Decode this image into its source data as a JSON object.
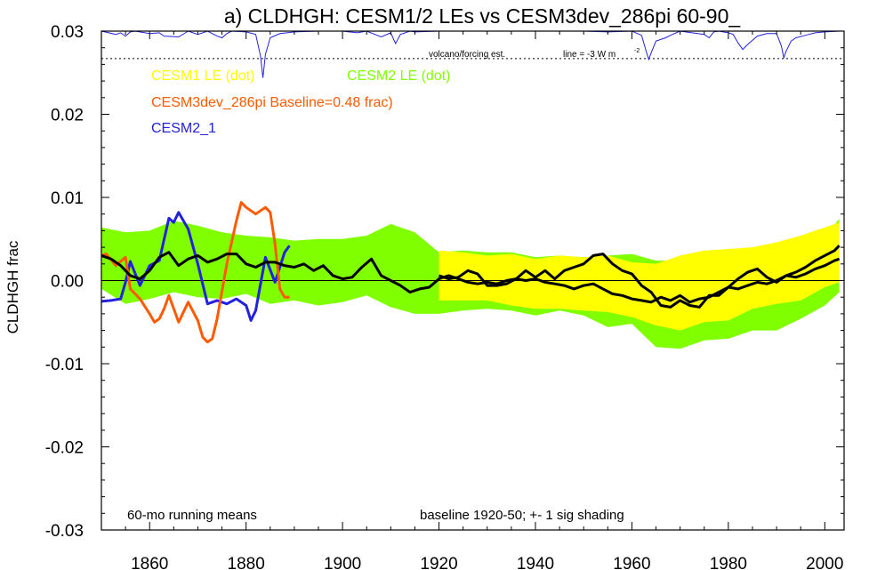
{
  "chart_data": {
    "type": "line",
    "title": "a) CLDHGH: CESM1/2 LEs vs CESM3dev_286pi 60-90_",
    "ylabel": "CLDHGH frac",
    "xlim": [
      1850,
      2004
    ],
    "ylim": [
      -0.03,
      0.03
    ],
    "xticks": [
      1860,
      1880,
      1900,
      1920,
      1940,
      1960,
      1980,
      2000
    ],
    "yticks": [
      {
        "v": 0.03,
        "label": "0.03"
      },
      {
        "v": 0.02,
        "label": "0.02"
      },
      {
        "v": 0.01,
        "label": "0.01"
      },
      {
        "v": 0.0,
        "label": "0.00"
      },
      {
        "v": -0.01,
        "label": "-0.01"
      },
      {
        "v": -0.02,
        "label": "-0.02"
      },
      {
        "v": -0.03,
        "label": "-0.03"
      }
    ],
    "legend": {
      "cesm1": {
        "text": "CESM1 LE (dot)",
        "color": "#ffff00"
      },
      "cesm2": {
        "text": "CESM2 LE (dot)",
        "color": "#80ff00"
      },
      "cesm3": {
        "text": "CESM3dev_286pi Baseline=0.48 frac)",
        "color": "#ff5a00"
      },
      "cesm2_1": {
        "text": "CESM2_1",
        "color": "#2222dd"
      }
    },
    "annotations": {
      "volcano": "volcano/forcing est.",
      "line_label": "line = -3 W m",
      "line_sup": "-2",
      "running": "60-mo running means",
      "baseline": "baseline 1920-50; +- 1 sig shading"
    },
    "volcano_ref_y": 0.0267,
    "colors": {
      "cesm1_band": "#ffff00",
      "cesm2_band": "#80ff00",
      "cesm3": "#ff5a00",
      "cesm2_1": "#2222dd",
      "ens_mean": "#000000",
      "volcano": "#2222dd"
    },
    "cesm2_band": {
      "x": [
        1850,
        1855,
        1860,
        1865,
        1870,
        1875,
        1880,
        1885,
        1890,
        1895,
        1900,
        1905,
        1910,
        1915,
        1920,
        1925,
        1930,
        1935,
        1940,
        1945,
        1950,
        1955,
        1960,
        1965,
        1970,
        1975,
        1980,
        1985,
        1990,
        1995,
        2000,
        2003
      ],
      "upper": [
        0.0064,
        0.0058,
        0.006,
        0.0072,
        0.0066,
        0.0058,
        0.0054,
        0.0052,
        0.0048,
        0.005,
        0.005,
        0.0054,
        0.0068,
        0.0058,
        0.0034,
        0.0036,
        0.0034,
        0.0034,
        0.0028,
        0.003,
        0.0028,
        0.003,
        0.0032,
        0.0024,
        0.0024,
        0.0028,
        0.0032,
        0.0034,
        0.004,
        0.0046,
        0.0054,
        0.0074
      ],
      "lower": [
        -0.001,
        -0.0028,
        -0.0022,
        -0.0014,
        -0.002,
        -0.0022,
        -0.0016,
        -0.0028,
        -0.0024,
        -0.003,
        -0.0026,
        -0.0018,
        -0.0032,
        -0.004,
        -0.004,
        -0.0036,
        -0.0034,
        -0.0036,
        -0.0042,
        -0.0036,
        -0.0042,
        -0.0056,
        -0.0052,
        -0.008,
        -0.0082,
        -0.0072,
        -0.007,
        -0.006,
        -0.006,
        -0.0046,
        -0.003,
        -0.0014
      ]
    },
    "cesm1_band": {
      "x": [
        1920,
        1925,
        1930,
        1935,
        1940,
        1945,
        1950,
        1955,
        1960,
        1965,
        1970,
        1975,
        1980,
        1985,
        1990,
        1995,
        2000,
        2003
      ],
      "upper": [
        0.0036,
        0.0034,
        0.003,
        0.0032,
        0.0026,
        0.003,
        0.0028,
        0.003,
        0.0022,
        0.002,
        0.003,
        0.0036,
        0.0038,
        0.004,
        0.0046,
        0.0054,
        0.0064,
        0.007
      ],
      "lower": [
        -0.0024,
        -0.0024,
        -0.0024,
        -0.003,
        -0.0034,
        -0.0034,
        -0.0036,
        -0.0038,
        -0.0044,
        -0.0054,
        -0.006,
        -0.005,
        -0.0048,
        -0.0034,
        -0.0028,
        -0.0024,
        -0.0008,
        -0.0002
      ]
    },
    "series": [
      {
        "name": "CESM2_1",
        "color": "#2222dd",
        "x": [
          1850,
          1852,
          1854,
          1855,
          1856,
          1858,
          1860,
          1862,
          1864,
          1865,
          1866,
          1867,
          1868,
          1870,
          1872,
          1874,
          1876,
          1878,
          1880,
          1881,
          1882,
          1884,
          1886,
          1888,
          1889
        ],
        "y": [
          -0.0025,
          -0.0024,
          -0.0022,
          -0.0002,
          0.0023,
          -0.0006,
          0.0018,
          0.0024,
          0.0075,
          0.007,
          0.0082,
          0.0072,
          0.0062,
          0.002,
          -0.0028,
          -0.0024,
          -0.0028,
          -0.0022,
          -0.003,
          -0.0048,
          -0.0036,
          0.0028,
          -0.0002,
          0.0034,
          0.0042
        ]
      },
      {
        "name": "CESM3dev_286pi",
        "color": "#ff5a00",
        "x": [
          1850,
          1851,
          1853,
          1855,
          1856,
          1858,
          1860,
          1861,
          1862,
          1863,
          1864,
          1866,
          1868,
          1870,
          1871,
          1872,
          1873,
          1874,
          1876,
          1878,
          1879,
          1880,
          1882,
          1884,
          1885,
          1886,
          1887,
          1888,
          1889
        ],
        "y": [
          0.003,
          0.0032,
          0.0018,
          0.0028,
          -0.001,
          -0.0022,
          -0.004,
          -0.005,
          -0.0046,
          -0.0034,
          -0.0018,
          -0.005,
          -0.0026,
          -0.0048,
          -0.0068,
          -0.0074,
          -0.007,
          -0.0046,
          0.002,
          0.0072,
          0.0094,
          0.0088,
          0.008,
          0.0088,
          0.0082,
          0.0044,
          -0.001,
          -0.002,
          -0.002
        ]
      },
      {
        "name": "CESM2 LE mean",
        "color": "#000000",
        "x": [
          1850,
          1852,
          1854,
          1856,
          1858,
          1860,
          1862,
          1864,
          1866,
          1868,
          1870,
          1872,
          1874,
          1876,
          1878,
          1880,
          1882,
          1884,
          1886,
          1888,
          1890,
          1892,
          1894,
          1896,
          1898,
          1900,
          1902,
          1904,
          1906,
          1908,
          1910,
          1912,
          1914,
          1916,
          1918,
          1920,
          1922,
          1924,
          1926,
          1928,
          1930,
          1932,
          1934,
          1936,
          1938,
          1940,
          1942,
          1944,
          1946,
          1948,
          1950,
          1952,
          1954,
          1956,
          1958,
          1960,
          1962,
          1964,
          1966,
          1968,
          1970,
          1972,
          1974,
          1976,
          1978,
          1980,
          1982,
          1984,
          1986,
          1988,
          1990,
          1992,
          1994,
          1996,
          1998,
          2000,
          2002,
          2003
        ],
        "y": [
          0.003,
          0.0026,
          0.0018,
          0.0006,
          0.0002,
          0.0012,
          0.0028,
          0.0034,
          0.0018,
          0.0026,
          0.003,
          0.0022,
          0.0026,
          0.0032,
          0.0032,
          0.002,
          0.0016,
          0.0022,
          0.0022,
          0.0018,
          0.0016,
          0.002,
          0.0012,
          0.0018,
          0.0006,
          0.0002,
          0.0004,
          0.0016,
          0.0026,
          0.0006,
          0.0,
          -0.0006,
          -0.0014,
          -0.001,
          -0.0008,
          0.0002,
          0.0006,
          0.0002,
          -0.0002,
          -0.0004,
          -0.0002,
          -0.0004,
          0.0,
          0.0002,
          0.0,
          0.0002,
          -0.0002,
          -0.0004,
          -0.0006,
          -0.001,
          -0.0006,
          -0.0004,
          -0.001,
          -0.0016,
          -0.0018,
          -0.0022,
          -0.0024,
          -0.0026,
          -0.002,
          -0.0024,
          -0.0018,
          -0.0026,
          -0.0022,
          -0.002,
          -0.0014,
          -0.0008,
          -0.001,
          -0.0006,
          -0.0002,
          -0.0004,
          0.0,
          0.0006,
          0.0004,
          0.0008,
          0.0014,
          0.0018,
          0.0024,
          0.0026
        ]
      },
      {
        "name": "CESM1 LE mean",
        "color": "#000000",
        "x": [
          1920,
          1922,
          1924,
          1926,
          1928,
          1930,
          1932,
          1934,
          1936,
          1938,
          1940,
          1942,
          1944,
          1946,
          1948,
          1950,
          1952,
          1954,
          1956,
          1958,
          1960,
          1962,
          1964,
          1966,
          1968,
          1970,
          1972,
          1974,
          1976,
          1978,
          1980,
          1982,
          1984,
          1986,
          1988,
          1990,
          1992,
          1994,
          1996,
          1998,
          2000,
          2002,
          2003
        ],
        "y": [
          0.0006,
          0.0002,
          0.0004,
          0.0012,
          0.0008,
          -0.0006,
          -0.0006,
          -0.0004,
          0.0002,
          0.0012,
          0.0004,
          0.0012,
          0.0002,
          0.0012,
          0.0016,
          0.002,
          0.003,
          0.0032,
          0.002,
          0.0012,
          0.0008,
          -0.0006,
          -0.0014,
          -0.003,
          -0.0032,
          -0.0024,
          -0.003,
          -0.0032,
          -0.0018,
          -0.0018,
          -0.0008,
          0.0002,
          0.001,
          0.0014,
          0.0004,
          -0.0002,
          0.0006,
          0.001,
          0.0016,
          0.0024,
          0.003,
          0.0036,
          0.0042
        ]
      }
    ],
    "volcano": {
      "x": [
        1850,
        1853,
        1854,
        1855,
        1856,
        1857,
        1860,
        1862,
        1863,
        1866,
        1868,
        1870,
        1872,
        1874,
        1875,
        1876,
        1877,
        1880,
        1882,
        1883,
        1883.5,
        1884,
        1885,
        1887,
        1890,
        1895,
        1900,
        1903,
        1905,
        1908,
        1910,
        1911,
        1912,
        1914,
        1915,
        1920,
        1925,
        1930,
        1940,
        1950,
        1955,
        1960,
        1962,
        1963,
        1963.5,
        1964,
        1965,
        1967,
        1968,
        1970,
        1975,
        1976,
        1977,
        1978,
        1980,
        1981,
        1982,
        1983,
        1984,
        1986,
        1988,
        1990,
        1991,
        1991.5,
        1992,
        1993,
        1994,
        1996,
        1998,
        2000,
        2003
      ],
      "y": [
        0.03,
        0.0296,
        0.0298,
        0.0294,
        0.0299,
        0.03,
        0.0297,
        0.0298,
        0.0294,
        0.0293,
        0.03,
        0.0296,
        0.03,
        0.0294,
        0.0292,
        0.0297,
        0.03,
        0.0299,
        0.0296,
        0.027,
        0.0244,
        0.0272,
        0.0292,
        0.0297,
        0.0299,
        0.03,
        0.03,
        0.0298,
        0.03,
        0.0293,
        0.0298,
        0.0285,
        0.0296,
        0.03,
        0.0299,
        0.03,
        0.03,
        0.03,
        0.03,
        0.03,
        0.0299,
        0.03,
        0.0295,
        0.0275,
        0.0266,
        0.0274,
        0.0288,
        0.0292,
        0.0295,
        0.03,
        0.0296,
        0.0292,
        0.0299,
        0.03,
        0.0298,
        0.0296,
        0.0286,
        0.0278,
        0.0284,
        0.0294,
        0.0297,
        0.0297,
        0.0282,
        0.0268,
        0.0276,
        0.0288,
        0.0292,
        0.0295,
        0.0298,
        0.0299,
        0.03
      ]
    }
  }
}
